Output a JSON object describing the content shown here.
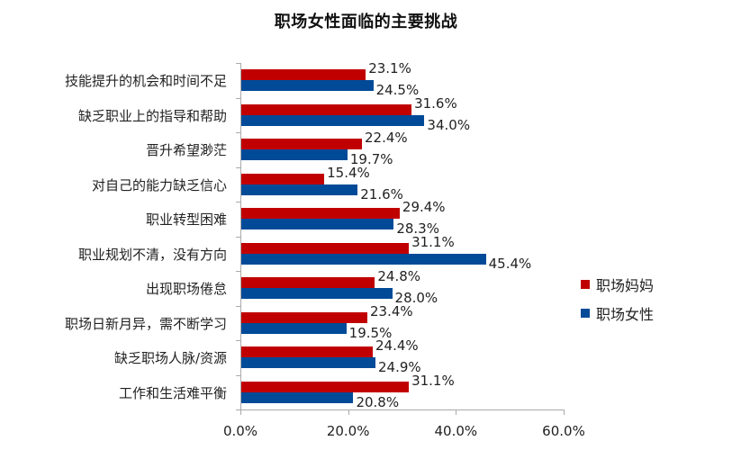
{
  "chart_data": {
    "type": "bar",
    "orientation": "horizontal",
    "title": "职场女性面临的主要挑战",
    "xlabel": "",
    "ylabel": "",
    "xlim": [
      0,
      60
    ],
    "x_ticks": [
      "0.0%",
      "20.0%",
      "40.0%",
      "60.0%"
    ],
    "categories": [
      "技能提升的机会和时间不足",
      "缺乏职业上的指导和帮助",
      "晋升希望渺茫",
      "对自己的能力缺乏信心",
      "职业转型困难",
      "职业规划不清，没有方向",
      "出现职场倦怠",
      "职场日新月异，需不断学习",
      "缺乏职场人脉/资源",
      "工作和生活难平衡"
    ],
    "series": [
      {
        "name": "职场妈妈",
        "color": "#C00000",
        "values": [
          23.1,
          31.6,
          22.4,
          15.4,
          29.4,
          31.1,
          24.8,
          23.4,
          24.4,
          31.1
        ],
        "labels": [
          "23.1%",
          "31.6%",
          "22.4%",
          "15.4%",
          "29.4%",
          "31.1%",
          "24.8%",
          "23.4%",
          "24.4%",
          "31.1%"
        ]
      },
      {
        "name": "职场女性",
        "color": "#004A98",
        "values": [
          24.5,
          34.0,
          19.7,
          21.6,
          28.3,
          45.4,
          28.0,
          19.5,
          24.9,
          20.8
        ],
        "labels": [
          "24.5%",
          "34.0%",
          "19.7%",
          "21.6%",
          "28.3%",
          "45.4%",
          "28.0%",
          "19.5%",
          "24.9%",
          "20.8%"
        ]
      }
    ],
    "grid": false,
    "legend_position": "right"
  },
  "legend": {
    "items": [
      {
        "label": "职场妈妈",
        "color": "#C00000"
      },
      {
        "label": "职场女性",
        "color": "#004A98"
      }
    ]
  }
}
